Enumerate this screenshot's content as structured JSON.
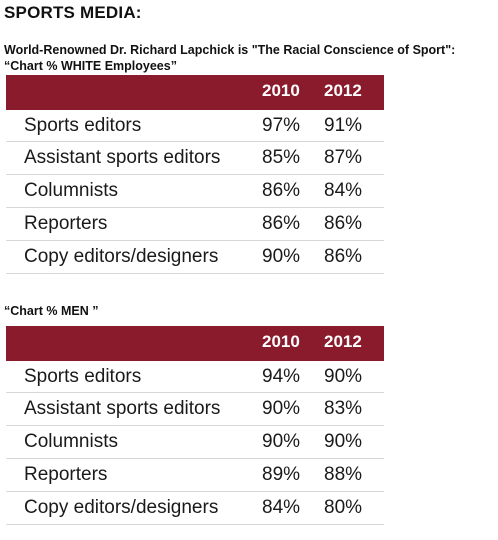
{
  "heading": "SPORTS MEDIA:",
  "subtitle_line1": "World-Renowned Dr. Richard Lapchick is \"The Racial Conscience of Sport\":",
  "subtitle_line2": "“Chart % WHITE Employees”",
  "table1": {
    "years": [
      "2010",
      "2012"
    ],
    "rows": [
      {
        "label": "Sports editors",
        "v2010": "97%",
        "v2012": "91%"
      },
      {
        "label": "Assistant sports editors",
        "v2010": "85%",
        "v2012": "87%"
      },
      {
        "label": "Columnists",
        "v2010": "86%",
        "v2012": "84%"
      },
      {
        "label": "Reporters",
        "v2010": "86%",
        "v2012": "86%"
      },
      {
        "label": "Copy editors/designers",
        "v2010": "90%",
        "v2012": "86%"
      }
    ]
  },
  "caption2": "“Chart % MEN ”",
  "table2": {
    "years": [
      "2010",
      "2012"
    ],
    "rows": [
      {
        "label": "Sports editors",
        "v2010": "94%",
        "v2012": "90%"
      },
      {
        "label": "Assistant sports editors",
        "v2010": "90%",
        "v2012": "83%"
      },
      {
        "label": "Columnists",
        "v2010": "90%",
        "v2012": "90%"
      },
      {
        "label": "Reporters",
        "v2010": "89%",
        "v2012": "88%"
      },
      {
        "label": "Copy editors/designers",
        "v2010": "84%",
        "v2012": "80%"
      }
    ]
  }
}
